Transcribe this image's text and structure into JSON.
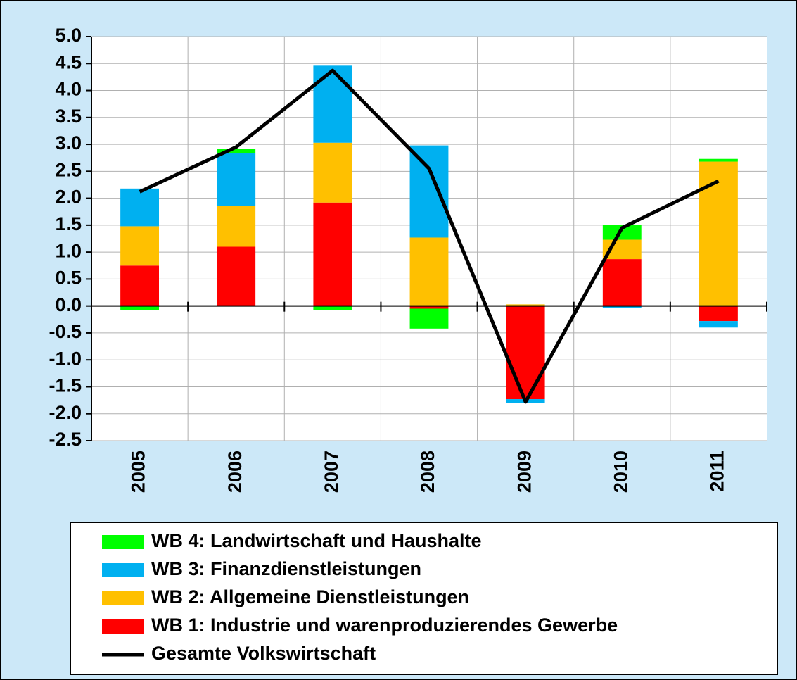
{
  "chart_data": {
    "type": "bar",
    "stacked": true,
    "categories": [
      "2005",
      "2006",
      "2007",
      "2008",
      "2009",
      "2010",
      "2011"
    ],
    "series": [
      {
        "name": "WB 1: Industrie und warenproduzierendes Gewerbe",
        "color": "#ff0000",
        "values": [
          0.75,
          1.1,
          1.92,
          -0.05,
          -1.73,
          0.87,
          -0.28
        ]
      },
      {
        "name": "WB 2: Allgemeine Dienstleistungen",
        "color": "#ffc000",
        "values": [
          0.73,
          0.76,
          1.11,
          1.27,
          0.03,
          0.36,
          2.68
        ]
      },
      {
        "name": "WB 3: Finanzdienstleistungen",
        "color": "#00b0f0",
        "values": [
          0.7,
          0.98,
          1.43,
          1.71,
          -0.07,
          -0.03,
          -0.12
        ]
      },
      {
        "name": "WB 4: Landwirtschaft und Haushalte",
        "color": "#00ff00",
        "values": [
          -0.07,
          0.08,
          -0.08,
          -0.37,
          0,
          0.27,
          0.05
        ]
      },
      {
        "name": "Gesamte Volkswirtschaft",
        "color": "#000000",
        "type": "line",
        "values": [
          2.12,
          2.95,
          4.37,
          2.55,
          -1.78,
          1.45,
          2.32
        ]
      }
    ],
    "ylim": [
      -2.5,
      5.0
    ],
    "yticks": [
      {
        "value": 5.0,
        "label": "5.0"
      },
      {
        "value": 4.5,
        "label": "4.5"
      },
      {
        "value": 4.0,
        "label": "4.0"
      },
      {
        "value": 3.5,
        "label": "3.5"
      },
      {
        "value": 3.0,
        "label": "3.0"
      },
      {
        "value": 2.5,
        "label": "2.5"
      },
      {
        "value": 2.0,
        "label": "2.0"
      },
      {
        "value": 1.5,
        "label": "1.5"
      },
      {
        "value": 1.0,
        "label": "1.0"
      },
      {
        "value": 0.5,
        "label": "0.5"
      },
      {
        "value": 0,
        "label": "0.0"
      },
      {
        "value": -0.5,
        "label": "-0.5"
      },
      {
        "value": -1.0,
        "label": "-1.0"
      },
      {
        "value": -1.5,
        "label": "-1.5"
      },
      {
        "value": -2.0,
        "label": "-2.0"
      },
      {
        "value": -2.5,
        "label": "-2.5"
      }
    ],
    "grid": true
  }
}
